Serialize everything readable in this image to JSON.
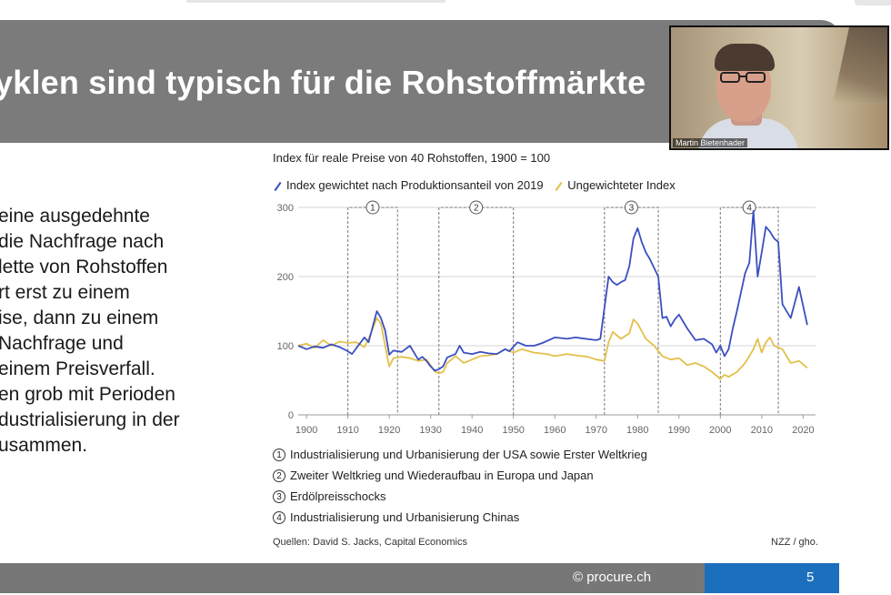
{
  "slide": {
    "title": "yklen sind typisch für die Rohstoffmärkte",
    "body_lines": [
      "eine ausgedehnte",
      "die Nachfrage nach",
      "lette von Rohstoffen",
      "rt erst zu einem",
      "ise, dann zu einem",
      "Nachfrage und",
      "einem Preisverfall.",
      "en grob mit Perioden",
      "dustrialisierung in der",
      "usammen."
    ],
    "footer_text": "© procure.ch",
    "page_number": "5"
  },
  "webcam": {
    "participant_name": "Martin Bietenhader"
  },
  "chart_data": {
    "type": "line",
    "title": "Index für reale Preise von 40 Rohstoffen, 1900 = 100",
    "xlim": [
      1898,
      2023
    ],
    "ylim": [
      0,
      300
    ],
    "x_ticks": [
      "1900",
      "1910",
      "1920",
      "1930",
      "1940",
      "1950",
      "1960",
      "1970",
      "1980",
      "1990",
      "2000",
      "2010",
      "2020"
    ],
    "y_ticks": [
      "0",
      "100",
      "200",
      "300"
    ],
    "grid": true,
    "series": [
      {
        "name": "Index gewichtet nach Produktionsanteil von 2019",
        "color": "#3b4fbf",
        "x": [
          1898,
          1900,
          1902,
          1904,
          1906,
          1908,
          1910,
          1911,
          1912,
          1914,
          1915,
          1917,
          1918,
          1919,
          1920,
          1921,
          1923,
          1925,
          1927,
          1928,
          1929,
          1930,
          1931,
          1932,
          1933,
          1934,
          1936,
          1937,
          1938,
          1940,
          1942,
          1944,
          1946,
          1948,
          1949,
          1951,
          1953,
          1955,
          1957,
          1960,
          1963,
          1965,
          1970,
          1971,
          1973,
          1974,
          1975,
          1976,
          1977,
          1978,
          1979,
          1980,
          1981,
          1982,
          1983,
          1985,
          1986,
          1987,
          1988,
          1989,
          1990,
          1992,
          1994,
          1996,
          1998,
          1999,
          2000,
          2001,
          2002,
          2003,
          2004,
          2006,
          2007,
          2008,
          2009,
          2010,
          2011,
          2012,
          2013,
          2014,
          2015,
          2017,
          2019,
          2021
        ],
        "y": [
          100,
          95,
          99,
          97,
          102,
          98,
          92,
          88,
          96,
          112,
          105,
          150,
          140,
          122,
          87,
          93,
          91,
          100,
          80,
          84,
          78,
          70,
          64,
          66,
          70,
          83,
          88,
          100,
          90,
          88,
          91,
          89,
          88,
          95,
          92,
          105,
          100,
          100,
          104,
          112,
          110,
          112,
          108,
          110,
          200,
          192,
          188,
          192,
          195,
          215,
          255,
          270,
          250,
          235,
          225,
          200,
          140,
          142,
          128,
          138,
          145,
          125,
          108,
          110,
          102,
          90,
          100,
          85,
          95,
          125,
          150,
          205,
          220,
          295,
          200,
          235,
          272,
          265,
          255,
          250,
          160,
          140,
          185,
          130
        ]
      },
      {
        "name": "Ungewichteter Index",
        "color": "#e3c04b",
        "x": [
          1898,
          1900,
          1902,
          1904,
          1906,
          1908,
          1910,
          1912,
          1914,
          1915,
          1917,
          1918,
          1919,
          1920,
          1921,
          1923,
          1925,
          1927,
          1929,
          1931,
          1932,
          1933,
          1934,
          1936,
          1938,
          1940,
          1942,
          1944,
          1946,
          1948,
          1950,
          1952,
          1955,
          1958,
          1960,
          1963,
          1965,
          1968,
          1970,
          1972,
          1973,
          1974,
          1976,
          1978,
          1979,
          1980,
          1982,
          1984,
          1986,
          1988,
          1990,
          1992,
          1994,
          1996,
          1998,
          2000,
          2001,
          2002,
          2004,
          2006,
          2008,
          2009,
          2010,
          2011,
          2012,
          2013,
          2015,
          2017,
          2019,
          2021
        ],
        "y": [
          100,
          103,
          97,
          108,
          100,
          106,
          104,
          105,
          98,
          110,
          140,
          132,
          100,
          70,
          82,
          84,
          82,
          78,
          80,
          63,
          60,
          62,
          75,
          85,
          75,
          80,
          85,
          86,
          88,
          95,
          90,
          95,
          90,
          88,
          85,
          88,
          86,
          84,
          80,
          78,
          105,
          120,
          110,
          118,
          138,
          132,
          110,
          100,
          85,
          80,
          82,
          72,
          75,
          70,
          62,
          52,
          58,
          55,
          62,
          75,
          95,
          110,
          90,
          105,
          112,
          100,
          95,
          75,
          78,
          68
        ]
      }
    ],
    "period_boxes": [
      {
        "label": "1",
        "start": 1910,
        "end": 1922
      },
      {
        "label": "2",
        "start": 1932,
        "end": 1950
      },
      {
        "label": "3",
        "start": 1972,
        "end": 1985
      },
      {
        "label": "4",
        "start": 2000,
        "end": 2014
      }
    ],
    "period_notes": [
      {
        "label": "1",
        "text": "Industrialisierung und Urbanisierung der USA sowie Erster Weltkrieg"
      },
      {
        "label": "2",
        "text": "Zweiter Weltkrieg und Wiederaufbau in Europa und Japan"
      },
      {
        "label": "3",
        "text": "Erdölpreisschocks"
      },
      {
        "label": "4",
        "text": "Industrialisierung und Urbanisierung Chinas"
      }
    ],
    "source": "Quellen: David S. Jacks, Capital Economics",
    "credit": "NZZ / gho."
  }
}
